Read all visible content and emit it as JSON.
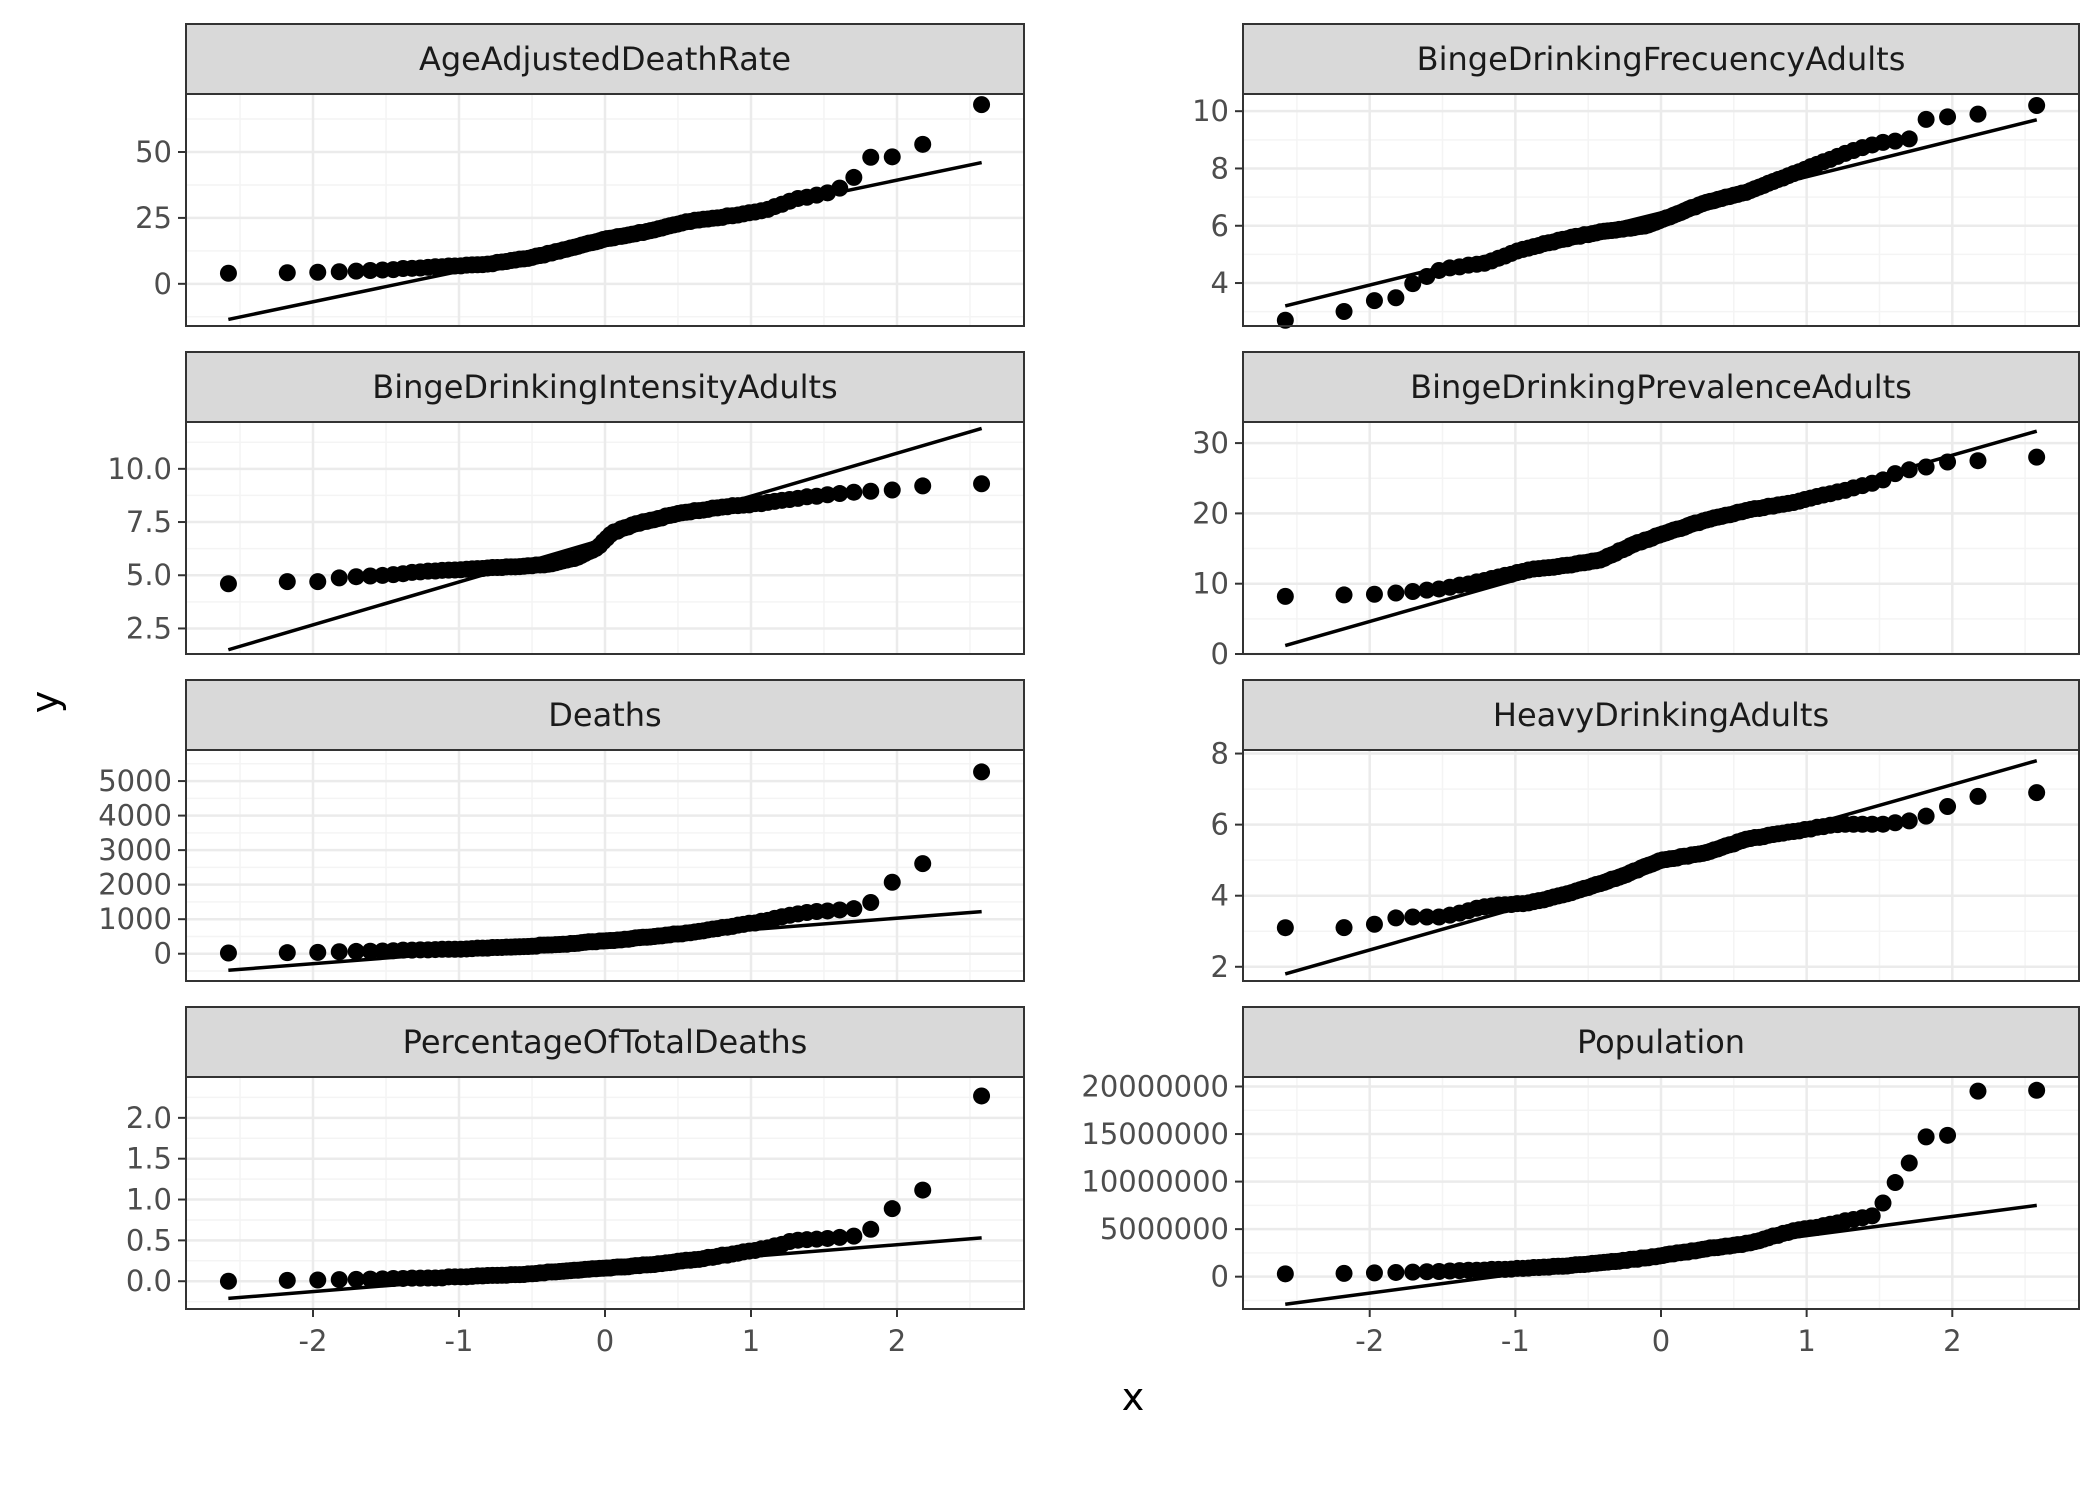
{
  "chart_data": {
    "type": "scatter",
    "subtype": "qq-plot facets",
    "xlabel": "x",
    "ylabel": "y",
    "x_ticks": [
      -2,
      -1,
      0,
      1,
      2
    ],
    "x_tick_labels": [
      "-2",
      "-1",
      "0",
      "1",
      "2"
    ],
    "xlim": [
      -2.87,
      2.87
    ],
    "grid": true,
    "theme": "bw",
    "colors": {
      "points": "#000000",
      "line": "#000000",
      "strip_fill": "#d9d9d9",
      "panel_border": "#333333",
      "grid_major": "#ebebeb",
      "grid_minor": "#f4f4f4"
    },
    "panels": [
      {
        "title": "AgeAdjustedDeathRate",
        "ylim": [
          -16,
          72
        ],
        "y_ticks": [
          0,
          25,
          50
        ],
        "y_tick_labels": [
          "0",
          "25",
          "50"
        ],
        "line": {
          "x": [
            -2.58,
            2.58
          ],
          "y": [
            -13.5,
            46
          ]
        },
        "anchors": [
          [
            -2.58,
            4
          ],
          [
            -2.18,
            4.2
          ],
          [
            -1.96,
            4.4
          ],
          [
            -1.8,
            4.6
          ],
          [
            -1.5,
            5.3
          ],
          [
            -1.2,
            6.3
          ],
          [
            -0.8,
            7.5
          ],
          [
            -0.5,
            10
          ],
          [
            -0.2,
            14
          ],
          [
            0,
            17
          ],
          [
            0.3,
            20
          ],
          [
            0.6,
            24
          ],
          [
            0.9,
            26
          ],
          [
            1.1,
            28
          ],
          [
            1.3,
            32
          ],
          [
            1.5,
            34
          ],
          [
            1.64,
            37
          ],
          [
            1.7,
            40
          ],
          [
            1.8,
            48
          ],
          [
            1.96,
            48
          ],
          [
            2.18,
            53
          ],
          [
            2.58,
            68
          ]
        ]
      },
      {
        "title": "BingeDrinkingFrecuencyAdults",
        "ylim": [
          2.5,
          10.6
        ],
        "y_ticks": [
          4,
          6,
          8,
          10
        ],
        "y_tick_labels": [
          "4",
          "6",
          "8",
          "10"
        ],
        "line": {
          "x": [
            -2.58,
            2.58
          ],
          "y": [
            3.2,
            9.7
          ]
        },
        "anchors": [
          [
            -2.58,
            2.7
          ],
          [
            -2.18,
            3
          ],
          [
            -1.96,
            3.4
          ],
          [
            -1.8,
            3.5
          ],
          [
            -1.7,
            4
          ],
          [
            -1.5,
            4.5
          ],
          [
            -1.2,
            4.7
          ],
          [
            -1,
            5.1
          ],
          [
            -0.7,
            5.5
          ],
          [
            -0.4,
            5.8
          ],
          [
            -0.1,
            6
          ],
          [
            0,
            6.2
          ],
          [
            0.3,
            6.8
          ],
          [
            0.6,
            7.2
          ],
          [
            0.9,
            7.8
          ],
          [
            1.1,
            8.2
          ],
          [
            1.3,
            8.6
          ],
          [
            1.5,
            8.9
          ],
          [
            1.7,
            9
          ],
          [
            1.8,
            9.7
          ],
          [
            1.96,
            9.8
          ],
          [
            2.18,
            9.9
          ],
          [
            2.58,
            10.2
          ]
        ]
      },
      {
        "title": "BingeDrinkingIntensityAdults",
        "ylim": [
          1.3,
          12.2
        ],
        "y_ticks": [
          2.5,
          5,
          7.5,
          10
        ],
        "y_tick_labels": [
          "2.5",
          "5.0",
          "7.5",
          "10.0"
        ],
        "line": {
          "x": [
            -2.58,
            2.58
          ],
          "y": [
            1.5,
            11.9
          ]
        },
        "anchors": [
          [
            -2.58,
            4.6
          ],
          [
            -2.18,
            4.7
          ],
          [
            -1.96,
            4.7
          ],
          [
            -1.8,
            4.9
          ],
          [
            -1.5,
            5
          ],
          [
            -1.2,
            5.2
          ],
          [
            -0.9,
            5.3
          ],
          [
            -0.6,
            5.4
          ],
          [
            -0.4,
            5.5
          ],
          [
            -0.2,
            5.8
          ],
          [
            -0.05,
            6.3
          ],
          [
            0.05,
            7
          ],
          [
            0.2,
            7.4
          ],
          [
            0.5,
            7.9
          ],
          [
            0.8,
            8.2
          ],
          [
            1.1,
            8.4
          ],
          [
            1.4,
            8.7
          ],
          [
            1.7,
            8.9
          ],
          [
            1.96,
            9
          ],
          [
            2.18,
            9.2
          ],
          [
            2.58,
            9.3
          ]
        ]
      },
      {
        "title": "BingeDrinkingPrevalenceAdults",
        "ylim": [
          0,
          33
        ],
        "y_ticks": [
          0,
          10,
          20,
          30
        ],
        "y_tick_labels": [
          "0",
          "10",
          "20",
          "30"
        ],
        "line": {
          "x": [
            -2.58,
            2.58
          ],
          "y": [
            1.2,
            31.7
          ]
        },
        "anchors": [
          [
            -2.58,
            8.2
          ],
          [
            -2.18,
            8.4
          ],
          [
            -1.96,
            8.5
          ],
          [
            -1.8,
            8.7
          ],
          [
            -1.5,
            9.3
          ],
          [
            -1.2,
            10.5
          ],
          [
            -0.9,
            12
          ],
          [
            -0.6,
            12.7
          ],
          [
            -0.4,
            13.5
          ],
          [
            -0.2,
            15.5
          ],
          [
            0,
            17
          ],
          [
            0.3,
            19
          ],
          [
            0.6,
            20.5
          ],
          [
            0.9,
            21.5
          ],
          [
            1.2,
            23
          ],
          [
            1.5,
            24.5
          ],
          [
            1.64,
            26
          ],
          [
            1.8,
            26.5
          ],
          [
            1.96,
            27.3
          ],
          [
            2.18,
            27.5
          ],
          [
            2.58,
            28
          ]
        ]
      },
      {
        "title": "Deaths",
        "ylim": [
          -790,
          5900
        ],
        "y_ticks": [
          0,
          1000,
          2000,
          3000,
          4000,
          5000
        ],
        "y_tick_labels": [
          "0",
          "1000",
          "2000",
          "3000",
          "4000",
          "5000"
        ],
        "line": {
          "x": [
            -2.58,
            2.58
          ],
          "y": [
            -480,
            1220
          ]
        },
        "anchors": [
          [
            -2.58,
            20
          ],
          [
            -2.18,
            30
          ],
          [
            -1.96,
            40
          ],
          [
            -1.8,
            60
          ],
          [
            -1.5,
            80
          ],
          [
            -1.2,
            110
          ],
          [
            -0.9,
            150
          ],
          [
            -0.6,
            200
          ],
          [
            -0.3,
            270
          ],
          [
            0,
            370
          ],
          [
            0.3,
            480
          ],
          [
            0.6,
            620
          ],
          [
            0.9,
            820
          ],
          [
            1.1,
            950
          ],
          [
            1.3,
            1150
          ],
          [
            1.5,
            1230
          ],
          [
            1.7,
            1300
          ],
          [
            1.8,
            1400
          ],
          [
            1.96,
            2050
          ],
          [
            2.18,
            2620
          ],
          [
            2.58,
            5270
          ]
        ]
      },
      {
        "title": "HeavyDrinkingAdults",
        "ylim": [
          1.6,
          8.1
        ],
        "y_ticks": [
          2,
          4,
          6,
          8
        ],
        "y_tick_labels": [
          "2",
          "4",
          "6",
          "8"
        ],
        "line": {
          "x": [
            -2.58,
            2.58
          ],
          "y": [
            1.8,
            7.8
          ]
        },
        "anchors": [
          [
            -2.58,
            3.1
          ],
          [
            -2.18,
            3.1
          ],
          [
            -1.96,
            3.2
          ],
          [
            -1.8,
            3.4
          ],
          [
            -1.5,
            3.4
          ],
          [
            -1.2,
            3.7
          ],
          [
            -0.9,
            3.8
          ],
          [
            -0.6,
            4.1
          ],
          [
            -0.3,
            4.5
          ],
          [
            0,
            5
          ],
          [
            0.3,
            5.2
          ],
          [
            0.6,
            5.6
          ],
          [
            0.9,
            5.8
          ],
          [
            1.2,
            6
          ],
          [
            1.5,
            6
          ],
          [
            1.7,
            6.1
          ],
          [
            1.8,
            6.2
          ],
          [
            1.96,
            6.5
          ],
          [
            2.18,
            6.8
          ],
          [
            2.58,
            6.9
          ]
        ]
      },
      {
        "title": "PercentageOfTotalDeaths",
        "ylim": [
          -0.34,
          2.5
        ],
        "y_ticks": [
          0,
          0.5,
          1,
          1.5,
          2
        ],
        "y_tick_labels": [
          "0.0",
          "0.5",
          "1.0",
          "1.5",
          "2.0"
        ],
        "line": {
          "x": [
            -2.58,
            2.58
          ],
          "y": [
            -0.21,
            0.53
          ]
        },
        "anchors": [
          [
            -2.58,
            0
          ],
          [
            -2.18,
            0.01
          ],
          [
            -1.96,
            0.015
          ],
          [
            -1.8,
            0.02
          ],
          [
            -1.5,
            0.03
          ],
          [
            -1.2,
            0.04
          ],
          [
            -0.9,
            0.06
          ],
          [
            -0.6,
            0.08
          ],
          [
            -0.3,
            0.12
          ],
          [
            0,
            0.16
          ],
          [
            0.3,
            0.2
          ],
          [
            0.6,
            0.26
          ],
          [
            0.9,
            0.34
          ],
          [
            1.1,
            0.4
          ],
          [
            1.3,
            0.5
          ],
          [
            1.5,
            0.52
          ],
          [
            1.7,
            0.55
          ],
          [
            1.8,
            0.6
          ],
          [
            1.96,
            0.88
          ],
          [
            2.18,
            1.12
          ],
          [
            2.58,
            2.27
          ]
        ]
      },
      {
        "title": "Population",
        "ylim": [
          -3400000,
          21000000
        ],
        "y_ticks": [
          0,
          5000000,
          10000000,
          15000000,
          20000000
        ],
        "y_tick_labels": [
          "0",
          "5000000",
          "10000000",
          "15000000",
          "20000000"
        ],
        "line": {
          "x": [
            -2.58,
            2.58
          ],
          "y": [
            -2900000,
            7500000
          ]
        },
        "anchors": [
          [
            -2.58,
            300000
          ],
          [
            -2.18,
            350000
          ],
          [
            -1.96,
            400000
          ],
          [
            -1.8,
            450000
          ],
          [
            -1.5,
            550000
          ],
          [
            -1.2,
            700000
          ],
          [
            -0.9,
            900000
          ],
          [
            -0.6,
            1200000
          ],
          [
            -0.3,
            1600000
          ],
          [
            0,
            2200000
          ],
          [
            0.3,
            2900000
          ],
          [
            0.6,
            3500000
          ],
          [
            0.9,
            4800000
          ],
          [
            1.1,
            5300000
          ],
          [
            1.3,
            6000000
          ],
          [
            1.5,
            6500000
          ],
          [
            1.56,
            9600000
          ],
          [
            1.64,
            10100000
          ],
          [
            1.8,
            14700000
          ],
          [
            1.96,
            14700000
          ],
          [
            2.18,
            19600000
          ],
          [
            2.58,
            19600000
          ]
        ]
      }
    ]
  }
}
